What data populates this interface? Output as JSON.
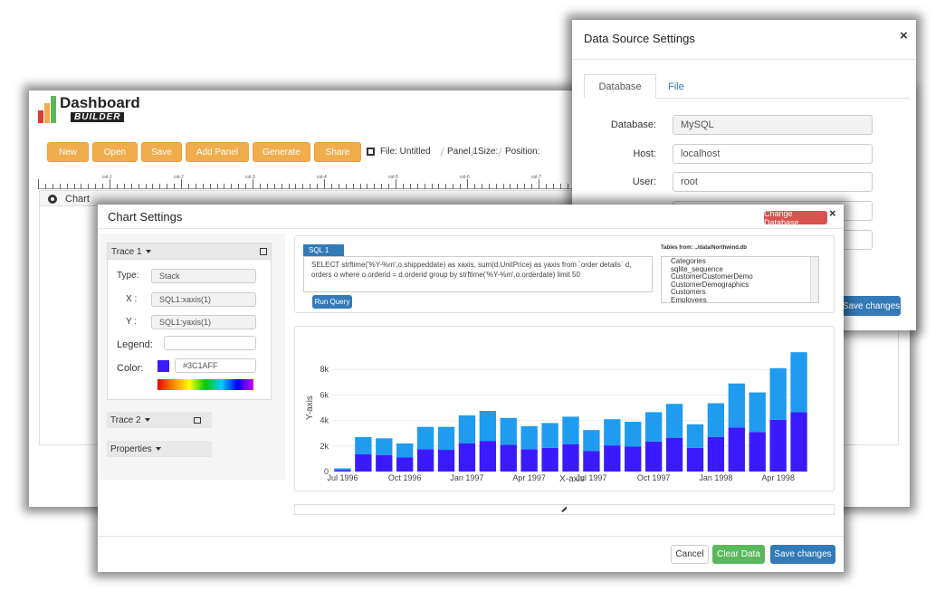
{
  "app": {
    "logo_top": "Dashboard",
    "logo_bottom": "BUILDER",
    "toolbar": [
      "New",
      "Open",
      "Save",
      "Add Panel",
      "Generate",
      "Share"
    ],
    "breadcrumb": [
      "File: Untitled",
      "Panel 1",
      "Size:",
      "Position:"
    ],
    "ruler": [
      "col-1",
      "col-2",
      "col-3",
      "col-4",
      "col-5",
      "col-6",
      "col-7"
    ],
    "panel_title": "Chart"
  },
  "data_source_modal": {
    "title": "Data Source Settings",
    "close": "×",
    "tabs": [
      "Database",
      "File"
    ],
    "fields": [
      {
        "label": "Database:",
        "value": "MySQL"
      },
      {
        "label": "Host:",
        "value": "localhost"
      },
      {
        "label": "User:",
        "value": "root"
      }
    ],
    "save": "Save changes"
  },
  "chart_settings_modal": {
    "title": "Chart Settings",
    "change_database": "Change Database",
    "close": "×",
    "trace1": {
      "title": "Trace 1",
      "fields": [
        {
          "label": "Type:",
          "value": "Stack"
        },
        {
          "label": "X :",
          "value": "SQL1:xaxis(1)"
        },
        {
          "label": "Y :",
          "value": "SQL1:yaxis(1)"
        }
      ],
      "legend_label": "Legend:",
      "color_label": "Color:",
      "color_value": "#3C1AFF"
    },
    "trace2": "Trace 2",
    "properties": "Properties",
    "sql_tab": "SQL 1",
    "query": "SELECT strftime('%Y-%m',o.shippeddate) as xaxis, sum(d.UnitPrice) as yaxis from `order details` d, orders o where o.orderid = d.orderid group by strftime('%Y-%m',o.orderdate) limit 50",
    "run_query": "Run Query",
    "tables_title": "Tables from: ../data/Northwind.db",
    "tables": [
      "Categories",
      "sqlite_sequence",
      "CustomerCustomerDemo",
      "CustomerDemographics",
      "Customers",
      "Employees"
    ],
    "footer": [
      "Cancel",
      "Clear Data",
      "Save changes"
    ]
  },
  "chart_data": {
    "type": "bar",
    "stacked": true,
    "x_label": "X-axis",
    "y_label": "Y-axis",
    "categories": [
      "Jul 1996",
      null,
      null,
      "Oct 1996",
      null,
      null,
      "Jan 1997",
      null,
      null,
      "Apr 1997",
      null,
      null,
      "Jul 1997",
      null,
      null,
      "Oct 1997",
      null,
      null,
      "Jan 1998",
      null,
      null,
      "Apr 1998",
      null
    ],
    "series": [
      {
        "color": "#3C1AFF",
        "values": [
          120,
          1350,
          1300,
          1100,
          1750,
          1700,
          2200,
          2400,
          2100,
          1750,
          1850,
          2150,
          1600,
          2050,
          1950,
          2350,
          2650,
          1850,
          2700,
          3450,
          3100,
          4050,
          4650
        ]
      },
      {
        "color": "#1F9BF0",
        "values": [
          130,
          1350,
          1300,
          1100,
          1750,
          1800,
          2200,
          2350,
          2100,
          1800,
          1950,
          2150,
          1650,
          2050,
          1950,
          2300,
          2650,
          1850,
          2650,
          3450,
          3100,
          4050,
          4700
        ]
      }
    ],
    "ylim": [
      0,
      10000
    ],
    "yticks": [
      0,
      {
        "value": 2000,
        "label": "2k"
      },
      {
        "value": 4000,
        "label": "4k"
      },
      {
        "value": 6000,
        "label": "6k"
      },
      {
        "value": 8000,
        "label": "8k"
      }
    ],
    "grid": true
  }
}
